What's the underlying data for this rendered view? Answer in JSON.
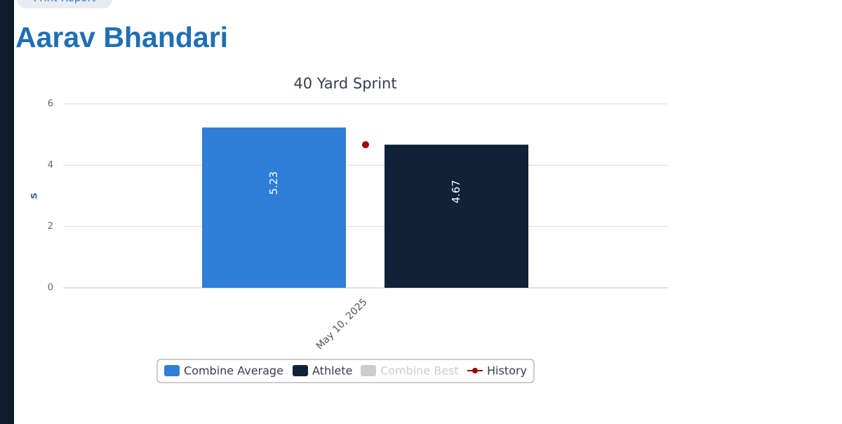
{
  "header": {
    "button": "Print Report",
    "name": "Aarav Bhandari"
  },
  "chart_data": {
    "type": "bar",
    "title": "40 Yard Sprint",
    "y_label": "s",
    "categories": [
      "May 10, 2025"
    ],
    "series": [
      {
        "name": "Combine Average",
        "color": "#2f7ed8",
        "values": [
          5.23
        ]
      },
      {
        "name": "Athlete",
        "color": "#0f2238",
        "values": [
          4.67
        ]
      },
      {
        "name": "Combine Best",
        "color": "#cccccc",
        "values": [
          null
        ],
        "visible": false
      },
      {
        "name": "History",
        "color": "#a00000",
        "type": "line",
        "values": [
          4.67
        ]
      }
    ],
    "ylim": [
      0,
      6
    ],
    "yticks": [
      0,
      2,
      4,
      6
    ],
    "grid": true,
    "legend": "bottom",
    "data_labels": true
  }
}
